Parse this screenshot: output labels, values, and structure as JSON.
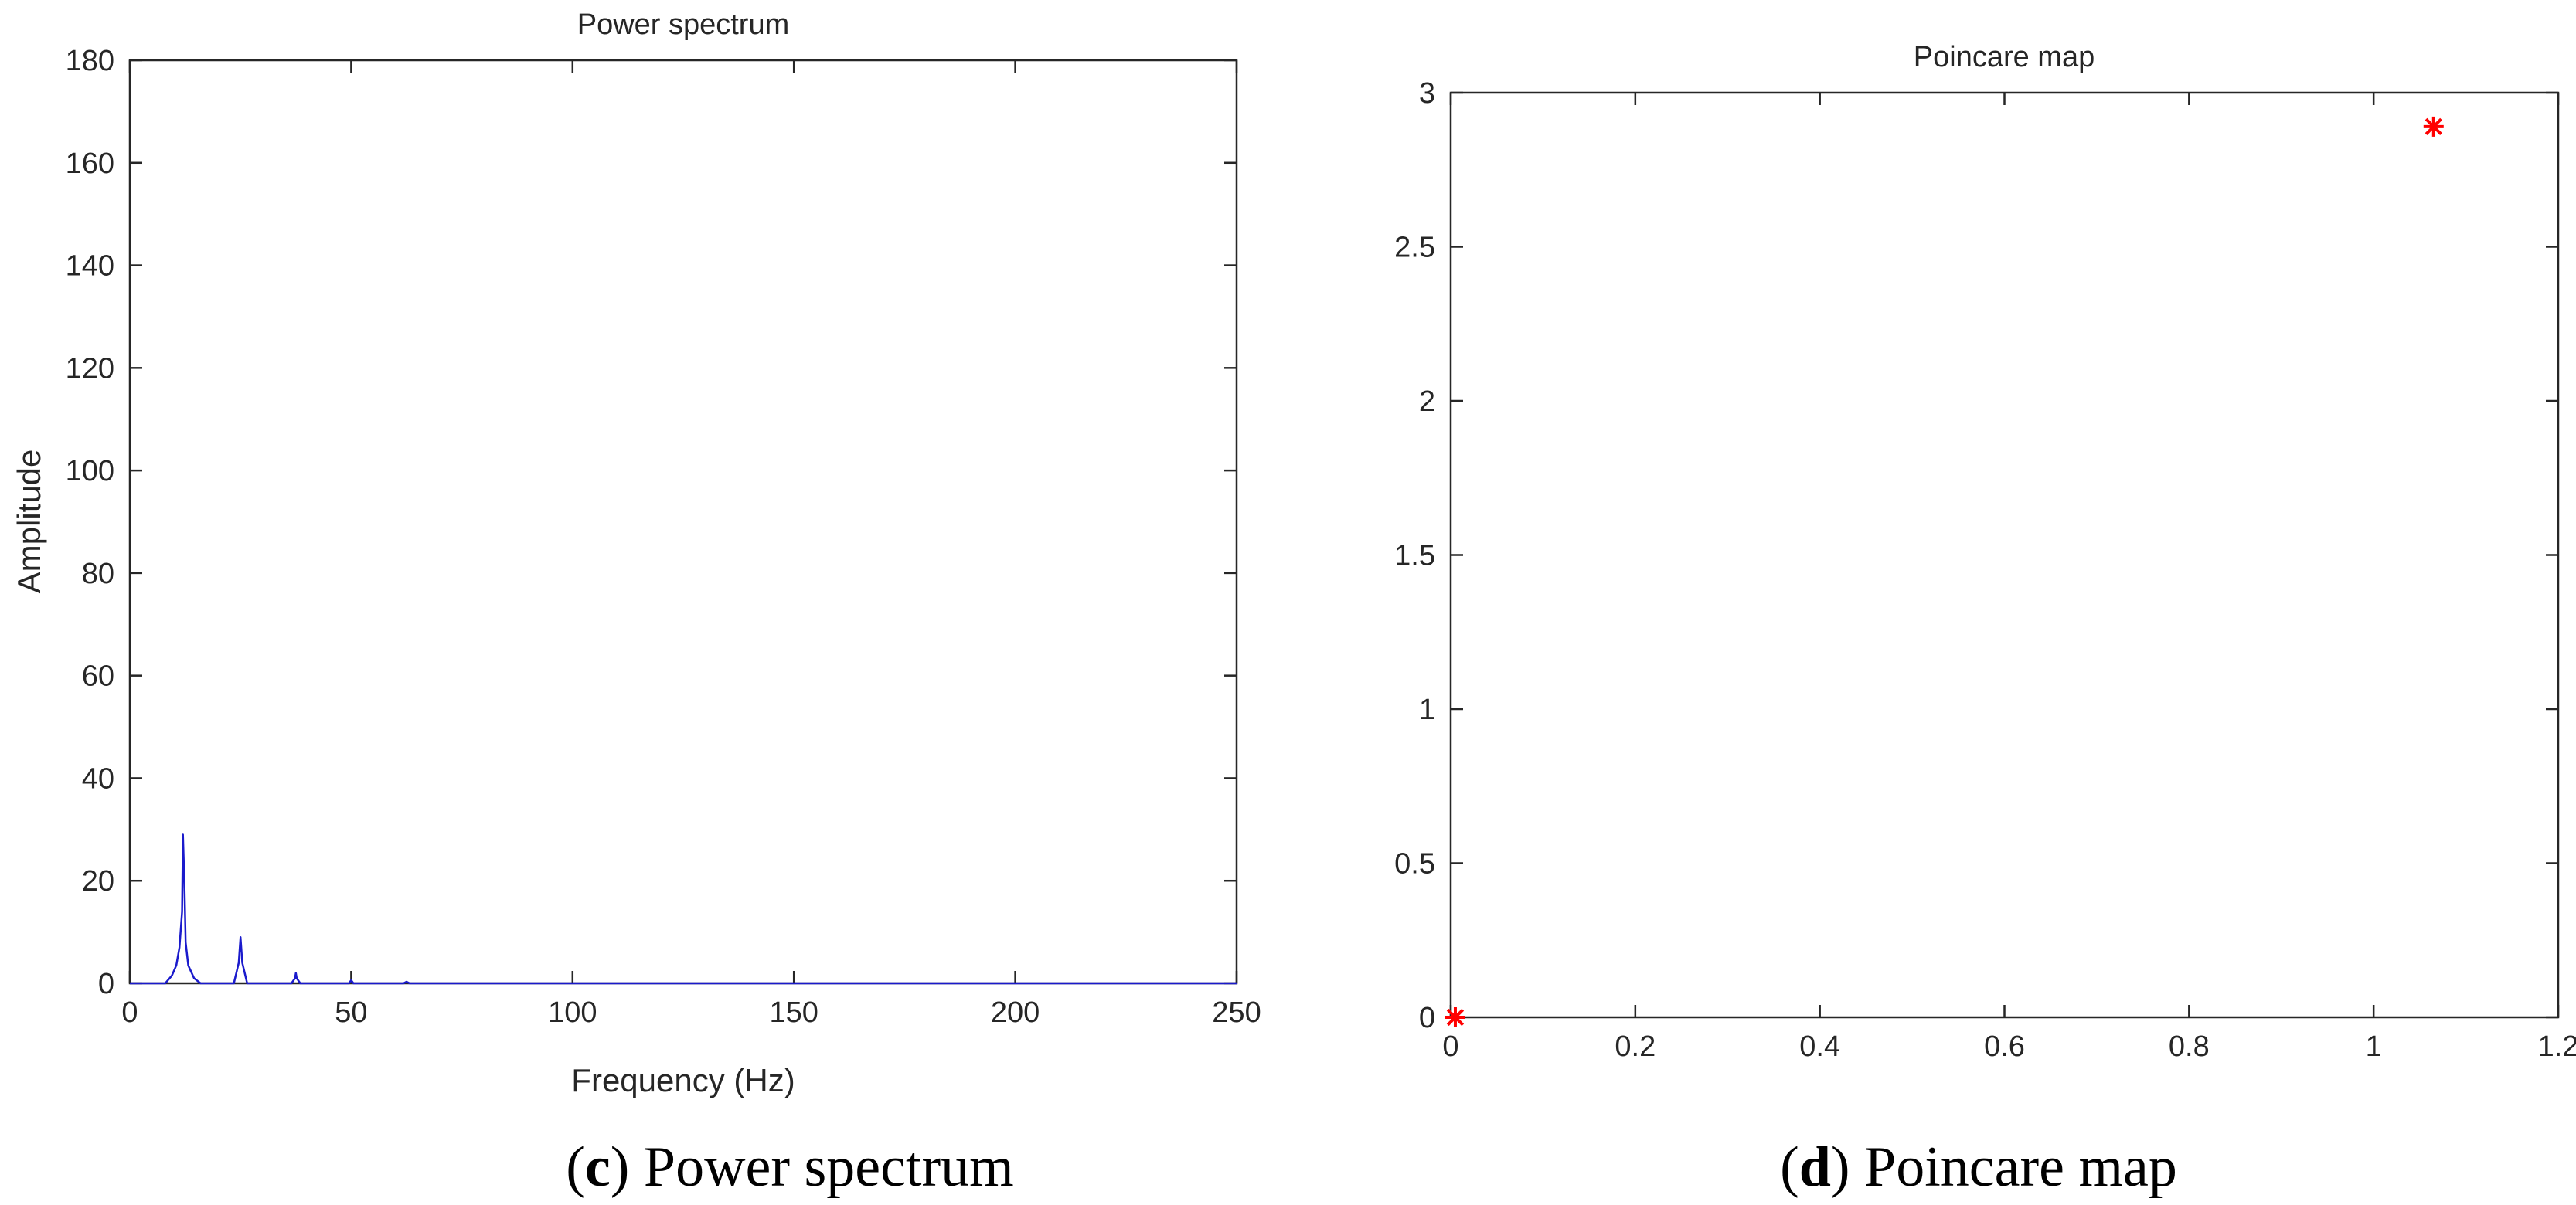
{
  "colors": {
    "spectrum_line": "#1a1acc",
    "poincare_marker": "#ff0000",
    "axis": "#262626"
  },
  "chart_data": [
    {
      "type": "line",
      "title": "Power spectrum",
      "xlabel": "Frequency (Hz)",
      "ylabel": "Amplitude",
      "xlim": [
        0,
        250
      ],
      "ylim": [
        0,
        180
      ],
      "x_ticks": [
        0,
        50,
        100,
        150,
        200,
        250
      ],
      "y_ticks": [
        0,
        20,
        40,
        60,
        80,
        100,
        120,
        140,
        160,
        180
      ],
      "x_tick_labels": [
        "0",
        "50",
        "100",
        "150",
        "200",
        "250"
      ],
      "y_tick_labels": [
        "0",
        "20",
        "40",
        "60",
        "80",
        "100",
        "120",
        "140",
        "160",
        "180"
      ],
      "grid": false,
      "series": [
        {
          "x": [
            0,
            8,
            9.5,
            10.5,
            11.2,
            11.8,
            12.0,
            12.3,
            12.6,
            13.2,
            14.5,
            16,
            23.5,
            24.6,
            25.0,
            25.4,
            26.5,
            36.5,
            37.3,
            37.5,
            37.7,
            38.5,
            49.5,
            50.0,
            50.5,
            61.8,
            62.5,
            63.2,
            250
          ],
          "y": [
            0,
            0,
            1.5,
            3.5,
            7,
            14,
            29,
            20,
            8,
            3.5,
            1,
            0,
            0,
            4,
            9,
            4,
            0,
            0,
            1,
            2,
            1,
            0,
            0,
            0.6,
            0,
            0,
            0.3,
            0,
            0
          ]
        }
      ]
    },
    {
      "type": "scatter",
      "title": "Poincare map",
      "xlim": [
        0,
        1.2
      ],
      "ylim": [
        0,
        3
      ],
      "x_ticks": [
        0,
        0.2,
        0.4,
        0.6,
        0.8,
        1,
        1.2
      ],
      "y_ticks": [
        0,
        0.5,
        1,
        1.5,
        2,
        2.5,
        3
      ],
      "x_tick_labels": [
        "0",
        "0.2",
        "0.4",
        "0.6",
        "0.8",
        "1",
        "1.2"
      ],
      "y_tick_labels": [
        "0",
        "0.5",
        "1",
        "1.5",
        "2",
        "2.5",
        "3"
      ],
      "grid": false,
      "marker": "asterisk",
      "points": [
        {
          "x": 0.005,
          "y": 0.0
        },
        {
          "x": 1.065,
          "y": 2.89
        }
      ]
    }
  ],
  "captions": [
    {
      "letter": "c",
      "text": ") Power spectrum"
    },
    {
      "letter": "d",
      "text": ") Poincare map"
    }
  ]
}
